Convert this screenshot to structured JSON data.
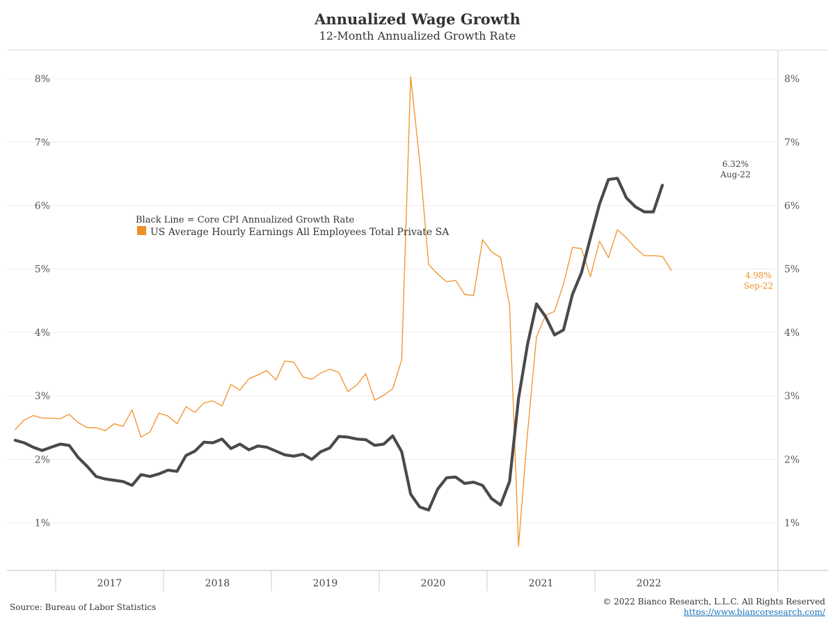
{
  "chart_data": {
    "type": "line",
    "title": "Annualized Wage Growth",
    "subtitle": "12-Month Annualized Growth Rate",
    "xlabel": "",
    "ylabel": "",
    "ylim": [
      0.25,
      8.45
    ],
    "y_ticks": [
      "1%",
      "2%",
      "3%",
      "4%",
      "5%",
      "6%",
      "7%",
      "8%"
    ],
    "x_ticks": [
      "2017",
      "2018",
      "2019",
      "2020",
      "2021",
      "2022"
    ],
    "grid": true,
    "legend_position": "upper-left",
    "legend": {
      "line1": "Black Line = Core CPI Annualized Growth Rate",
      "line2": "US Average Hourly Earnings All Employees Total Private SA"
    },
    "colors": {
      "earnings": "#f09028",
      "core_cpi": "#4a4a4a"
    },
    "series": [
      {
        "key": "earnings",
        "start": "2016-08",
        "values": [
          2.47,
          2.62,
          2.69,
          2.65,
          2.65,
          2.64,
          2.71,
          2.58,
          2.5,
          2.5,
          2.45,
          2.56,
          2.52,
          2.78,
          2.35,
          2.43,
          2.73,
          2.68,
          2.56,
          2.83,
          2.74,
          2.89,
          2.92,
          2.84,
          3.18,
          3.09,
          3.27,
          3.33,
          3.4,
          3.25,
          3.55,
          3.53,
          3.3,
          3.26,
          3.36,
          3.42,
          3.37,
          3.07,
          3.17,
          3.35,
          2.93,
          3.01,
          3.11,
          3.57,
          8.03,
          6.7,
          5.07,
          4.92,
          4.8,
          4.82,
          4.6,
          4.58,
          5.46,
          5.27,
          5.18,
          4.43,
          0.63,
          2.41,
          3.93,
          4.27,
          4.33,
          4.76,
          5.34,
          5.32,
          4.88,
          5.44,
          5.18,
          5.62,
          5.49,
          5.33,
          5.21,
          5.21,
          5.2,
          4.98
        ]
      },
      {
        "key": "core_cpi",
        "start": "2016-08",
        "values": [
          2.3,
          2.26,
          2.19,
          2.14,
          2.19,
          2.24,
          2.22,
          2.03,
          1.89,
          1.73,
          1.69,
          1.67,
          1.65,
          1.59,
          1.76,
          1.73,
          1.77,
          1.83,
          1.81,
          2.06,
          2.13,
          2.27,
          2.26,
          2.32,
          2.17,
          2.24,
          2.15,
          2.21,
          2.19,
          2.13,
          2.07,
          2.05,
          2.08,
          2.0,
          2.12,
          2.18,
          2.36,
          2.35,
          2.32,
          2.31,
          2.22,
          2.24,
          2.37,
          2.12,
          1.45,
          1.25,
          1.2,
          1.53,
          1.71,
          1.72,
          1.62,
          1.64,
          1.59,
          1.38,
          1.28,
          1.65,
          2.96,
          3.81,
          4.45,
          4.25,
          3.96,
          4.04,
          4.6,
          4.94,
          5.49,
          6.02,
          6.41,
          6.43,
          6.12,
          5.98,
          5.9,
          5.9,
          6.32
        ]
      }
    ],
    "annotations": {
      "core_cpi_value": "6.32%",
      "core_cpi_date": "Aug-22",
      "earnings_value": "4.98%",
      "earnings_date": "Sep-22"
    }
  },
  "footer": {
    "source": "Source: Bureau of Labor Statistics",
    "copyright": "© 2022 Bianco Research, L.L.C. All Rights Reserved",
    "url": "https://www.biancoresearch.com/"
  }
}
